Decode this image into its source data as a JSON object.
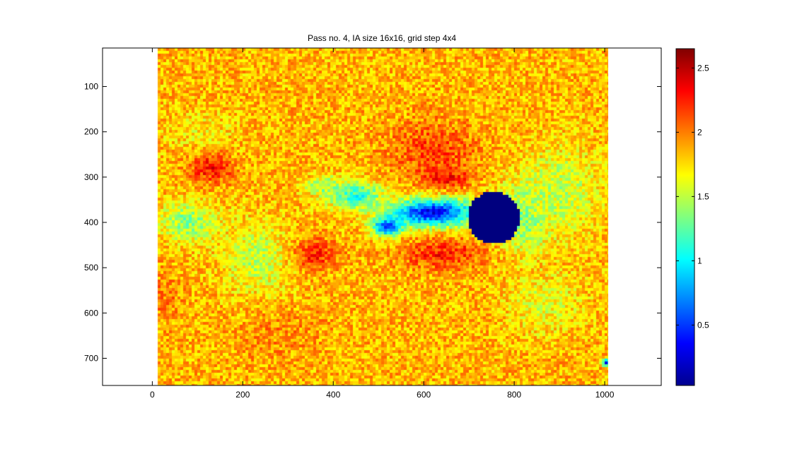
{
  "chart_data": {
    "type": "heatmap",
    "title": "Pass no. 4, IA size 16x16, grid step 4x4",
    "xlabel": "",
    "ylabel": "",
    "colormap": "jet",
    "xlim": [
      -110,
      1125
    ],
    "ylim": [
      760,
      15
    ],
    "y_reversed": true,
    "grid": false,
    "data_extent": {
      "x": [
        10,
        1020
      ],
      "y": [
        15,
        760
      ]
    },
    "x_ticks": [
      0,
      200,
      400,
      600,
      800,
      1000
    ],
    "x_tick_labels": [
      "0",
      "200",
      "400",
      "600",
      "800",
      "1000"
    ],
    "y_ticks": [
      100,
      200,
      300,
      400,
      500,
      600,
      700
    ],
    "y_tick_labels": [
      "100",
      "200",
      "300",
      "400",
      "500",
      "600",
      "700"
    ],
    "colorbar": {
      "range": [
        0.03,
        2.65
      ],
      "ticks": [
        0.5,
        1,
        1.5,
        2,
        2.5
      ],
      "tick_labels": [
        "0.5",
        "1",
        "1.5",
        "2",
        "2.5"
      ]
    },
    "background_value": 1.85,
    "features": [
      {
        "type": "disk",
        "cx": 755,
        "cy": 390,
        "r": 58,
        "value": 0.03
      },
      {
        "type": "blob",
        "cx": 620,
        "cy": 378,
        "rx": 120,
        "ry": 38,
        "value": 0.35
      },
      {
        "type": "blob",
        "cx": 520,
        "cy": 410,
        "rx": 40,
        "ry": 25,
        "value": 0.45
      },
      {
        "type": "blob",
        "cx": 450,
        "cy": 340,
        "rx": 75,
        "ry": 40,
        "value": 1.1
      },
      {
        "type": "blob",
        "cx": 380,
        "cy": 320,
        "rx": 50,
        "ry": 25,
        "value": 1.35
      },
      {
        "type": "blob",
        "cx": 820,
        "cy": 390,
        "rx": 70,
        "ry": 90,
        "value": 1.3
      },
      {
        "type": "blob",
        "cx": 900,
        "cy": 330,
        "rx": 110,
        "ry": 120,
        "value": 1.5
      },
      {
        "type": "blob",
        "cx": 80,
        "cy": 400,
        "rx": 75,
        "ry": 55,
        "value": 1.35
      },
      {
        "type": "blob",
        "cx": 230,
        "cy": 480,
        "rx": 90,
        "ry": 100,
        "value": 1.5
      },
      {
        "type": "blob",
        "cx": 110,
        "cy": 200,
        "rx": 90,
        "ry": 60,
        "value": 1.7
      },
      {
        "type": "blob",
        "cx": 870,
        "cy": 580,
        "rx": 100,
        "ry": 80,
        "value": 1.6
      },
      {
        "type": "blob",
        "cx": 130,
        "cy": 280,
        "rx": 60,
        "ry": 40,
        "value": 2.3
      },
      {
        "type": "blob",
        "cx": 620,
        "cy": 240,
        "rx": 120,
        "ry": 80,
        "value": 2.15
      },
      {
        "type": "blob",
        "cx": 650,
        "cy": 300,
        "rx": 60,
        "ry": 30,
        "value": 2.3
      },
      {
        "type": "blob",
        "cx": 640,
        "cy": 470,
        "rx": 110,
        "ry": 40,
        "value": 2.25
      },
      {
        "type": "blob",
        "cx": 360,
        "cy": 470,
        "rx": 60,
        "ry": 40,
        "value": 2.25
      },
      {
        "type": "blob",
        "cx": 30,
        "cy": 560,
        "rx": 40,
        "ry": 80,
        "value": 2.0
      },
      {
        "type": "blob",
        "cx": 280,
        "cy": 650,
        "rx": 140,
        "ry": 80,
        "value": 1.95
      },
      {
        "type": "blob",
        "cx": 1005,
        "cy": 710,
        "rx": 12,
        "ry": 10,
        "value": 0.4
      }
    ]
  }
}
